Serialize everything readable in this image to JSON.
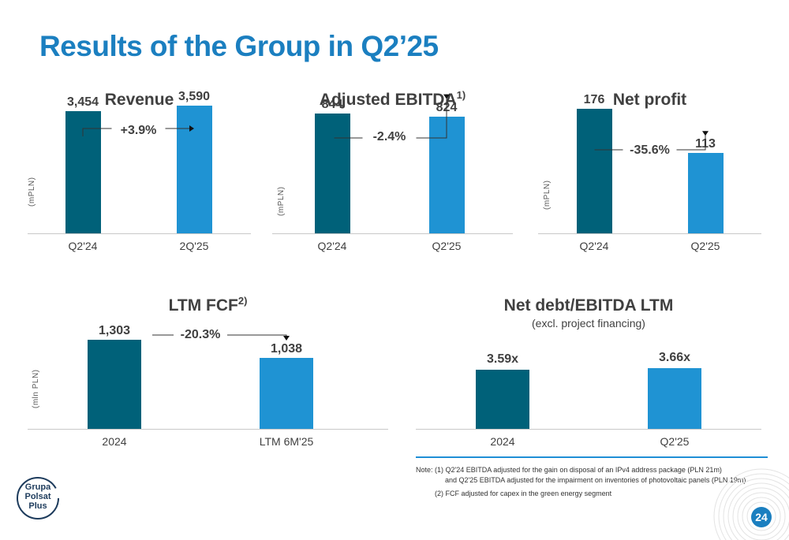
{
  "page": {
    "title": "Results of the Group in Q2’25",
    "page_number": "24",
    "logo_text": [
      "Grupa",
      "Polsat",
      "Plus"
    ]
  },
  "colors": {
    "dark": "#006179",
    "light": "#1f93d3",
    "accent": "#1b7fc0"
  },
  "notes": {
    "line1": "Note: (1) Q2'24 EBITDA adjusted for the gain on disposal of an IPv4 address package (PLN 21m)",
    "line2": "and Q2'25 EBITDA adjusted for the impairment on inventories of photovoltaic panels (PLN 19m)",
    "line3": "(2) FCF adjusted for capex in the green energy segment"
  },
  "chart_data": [
    {
      "type": "bar",
      "title": "Revenue",
      "sup": "",
      "subtitle": "",
      "ylabel": "(mPLN)",
      "categories": [
        "Q2'24",
        "2Q'25"
      ],
      "values": [
        3454,
        3590
      ],
      "value_labels": [
        "3,454",
        "3,590"
      ],
      "change": "+3.9%",
      "ylim": [
        0,
        4000
      ]
    },
    {
      "type": "bar",
      "title": "Adjusted EBITDA",
      "sup": "1)",
      "subtitle": "",
      "ylabel": "(mPLN)",
      "categories": [
        "Q2'24",
        "Q2'25"
      ],
      "values": [
        844,
        824
      ],
      "value_labels": [
        "844",
        "824"
      ],
      "change": "-2.4%",
      "ylim": [
        0,
        1000
      ]
    },
    {
      "type": "bar",
      "title": "Net profit",
      "sup": "",
      "subtitle": "",
      "ylabel": "(mPLN)",
      "categories": [
        "Q2'24",
        "Q2'25"
      ],
      "values": [
        176,
        113
      ],
      "value_labels": [
        "176",
        "113"
      ],
      "change": "-35.6%",
      "ylim": [
        0,
        200
      ]
    },
    {
      "type": "bar",
      "title": "LTM FCF",
      "sup": "2)",
      "subtitle": "",
      "ylabel": "(mln PLN)",
      "categories": [
        "2024",
        "LTM 6M'25"
      ],
      "values": [
        1303,
        1038
      ],
      "value_labels": [
        "1,303",
        "1,038"
      ],
      "change": "-20.3%",
      "ylim": [
        0,
        1500
      ]
    },
    {
      "type": "bar",
      "title": "Net debt/EBITDA LTM",
      "sup": "",
      "subtitle": "(excl. project financing)",
      "ylabel": "",
      "categories": [
        "2024",
        "Q2'25"
      ],
      "values": [
        3.59,
        3.66
      ],
      "value_labels": [
        "3.59x",
        "3.66x"
      ],
      "change": "",
      "ylim": [
        0,
        4.4
      ]
    }
  ]
}
